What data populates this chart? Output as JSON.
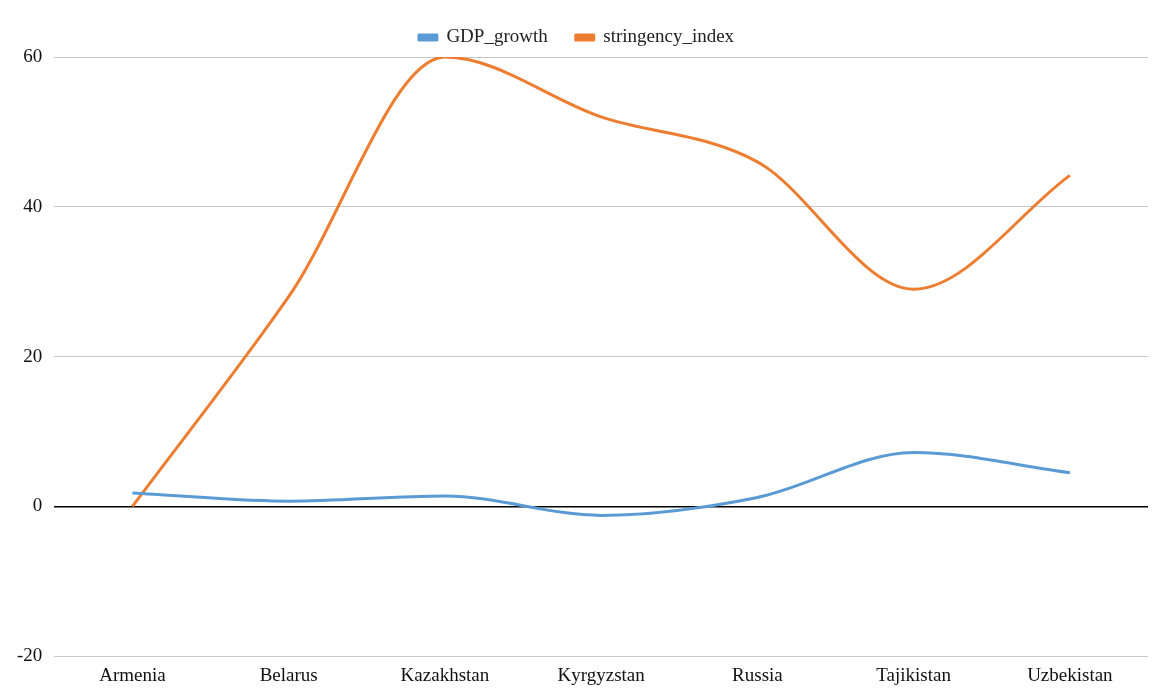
{
  "chart_data": {
    "type": "line",
    "categories": [
      "Armenia",
      "Belarus",
      "Kazakhstan",
      "Kyrgyzstan",
      "Russia",
      "Tajikistan",
      "Uzbekistan"
    ],
    "series": [
      {
        "name": "GDP_growth",
        "color": "#5b9bd5",
        "values": [
          1.8,
          0.7,
          1.4,
          -1.2,
          1.2,
          7.2,
          4.5
        ]
      },
      {
        "name": "stringency_index",
        "color": "#ed7d31",
        "values": [
          0,
          28,
          60,
          52,
          46,
          29,
          44.2
        ]
      }
    ],
    "ylim": [
      -20,
      60
    ],
    "yticks": [
      -20,
      0,
      20,
      40,
      60
    ],
    "grid": "y",
    "legend": "top",
    "marker": "none",
    "line_style": "solid"
  }
}
